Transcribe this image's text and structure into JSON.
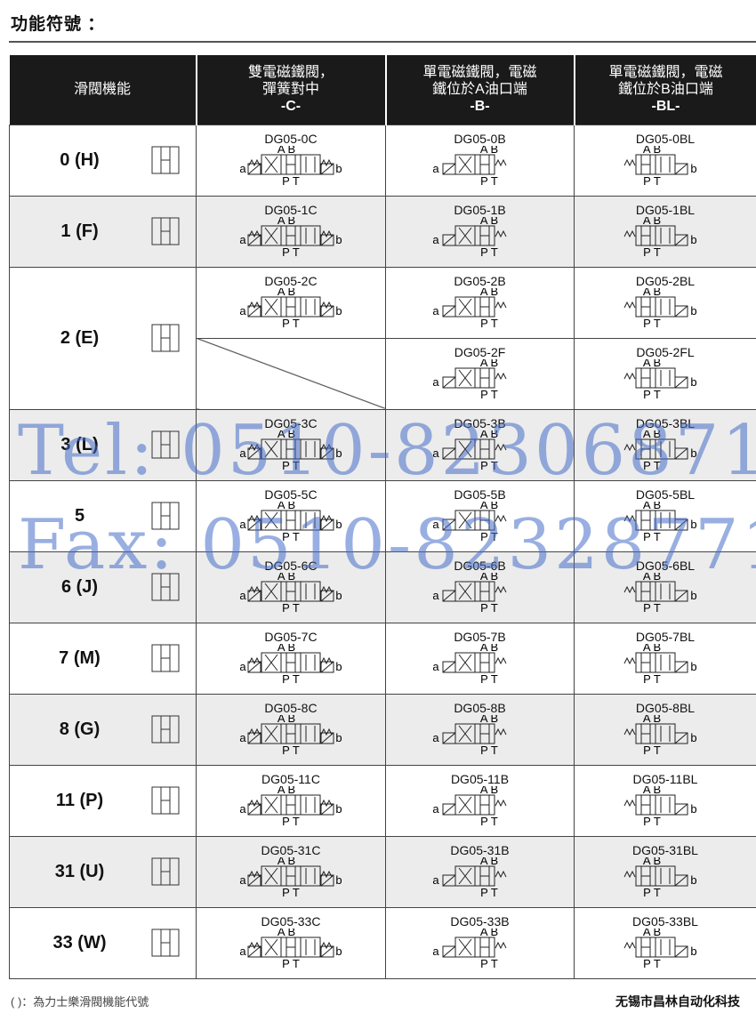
{
  "title": "功能符號 ：",
  "header": {
    "col0": "滑閥機能",
    "col1": [
      "雙電磁鐵閥，",
      "彈簧對中",
      "-C-"
    ],
    "col2": [
      "單電磁鐵閥，電磁",
      "鐵位於A油口端",
      "-B-"
    ],
    "col3": [
      "單電磁鐵閥，電磁",
      "鐵位於B油口端",
      "-BL-"
    ]
  },
  "ports": {
    "a": "A",
    "b": "B",
    "p": "P",
    "t": "T",
    "sol_a": "a",
    "sol_b": "b"
  },
  "rows": [
    {
      "func": "0 (H)",
      "shaded": false,
      "cells": [
        {
          "model": "DG05-0C",
          "type": "C"
        },
        {
          "model": "DG05-0B",
          "type": "B"
        },
        {
          "model": "DG05-0BL",
          "type": "BL"
        }
      ]
    },
    {
      "func": "1 (F)",
      "shaded": true,
      "cells": [
        {
          "model": "DG05-1C",
          "type": "C"
        },
        {
          "model": "DG05-1B",
          "type": "B"
        },
        {
          "model": "DG05-1BL",
          "type": "BL"
        }
      ]
    },
    {
      "func": "2 (E)",
      "shaded": false,
      "cells": [
        {
          "model": "DG05-2C",
          "type": "C"
        },
        {
          "model": "DG05-2B",
          "type": "B"
        },
        {
          "model": "DG05-2BL",
          "type": "BL"
        }
      ],
      "cells2": [
        null,
        {
          "model": "DG05-2F",
          "type": "B"
        },
        {
          "model": "DG05-2FL",
          "type": "BL"
        }
      ]
    },
    {
      "func": "3 (L)",
      "shaded": true,
      "cells": [
        {
          "model": "DG05-3C",
          "type": "C"
        },
        {
          "model": "DG05-3B",
          "type": "B"
        },
        {
          "model": "DG05-3BL",
          "type": "BL"
        }
      ]
    },
    {
      "func": "5",
      "shaded": false,
      "cells": [
        {
          "model": "DG05-5C",
          "type": "C"
        },
        {
          "model": "DG05-5B",
          "type": "B"
        },
        {
          "model": "DG05-5BL",
          "type": "BL"
        }
      ]
    },
    {
      "func": "6 (J)",
      "shaded": true,
      "cells": [
        {
          "model": "DG05-6C",
          "type": "C"
        },
        {
          "model": "DG05-6B",
          "type": "B"
        },
        {
          "model": "DG05-6BL",
          "type": "BL"
        }
      ]
    },
    {
      "func": "7 (M)",
      "shaded": false,
      "cells": [
        {
          "model": "DG05-7C",
          "type": "C"
        },
        {
          "model": "DG05-7B",
          "type": "B"
        },
        {
          "model": "DG05-7BL",
          "type": "BL"
        }
      ]
    },
    {
      "func": "8 (G)",
      "shaded": true,
      "cells": [
        {
          "model": "DG05-8C",
          "type": "C"
        },
        {
          "model": "DG05-8B",
          "type": "B"
        },
        {
          "model": "DG05-8BL",
          "type": "BL"
        }
      ]
    },
    {
      "func": "11 (P)",
      "shaded": false,
      "cells": [
        {
          "model": "DG05-11C",
          "type": "C"
        },
        {
          "model": "DG05-11B",
          "type": "B"
        },
        {
          "model": "DG05-11BL",
          "type": "BL"
        }
      ]
    },
    {
      "func": "31 (U)",
      "shaded": true,
      "cells": [
        {
          "model": "DG05-31C",
          "type": "C"
        },
        {
          "model": "DG05-31B",
          "type": "B"
        },
        {
          "model": "DG05-31BL",
          "type": "BL"
        }
      ]
    },
    {
      "func": "33 (W)",
      "shaded": false,
      "cells": [
        {
          "model": "DG05-33C",
          "type": "C"
        },
        {
          "model": "DG05-33B",
          "type": "B"
        },
        {
          "model": "DG05-33BL",
          "type": "BL"
        }
      ]
    }
  ],
  "footer_note": "( )：為力士樂滑閥機能代號",
  "company": "无锡市昌林自动化科技",
  "watermark": {
    "tel": "Tel: 0510-82306871",
    "fax": "Fax: 0510-82328771"
  },
  "colors": {
    "header_bg": "#1a1a1a",
    "shaded_row": "#ececec",
    "watermark": "#466ec8"
  }
}
